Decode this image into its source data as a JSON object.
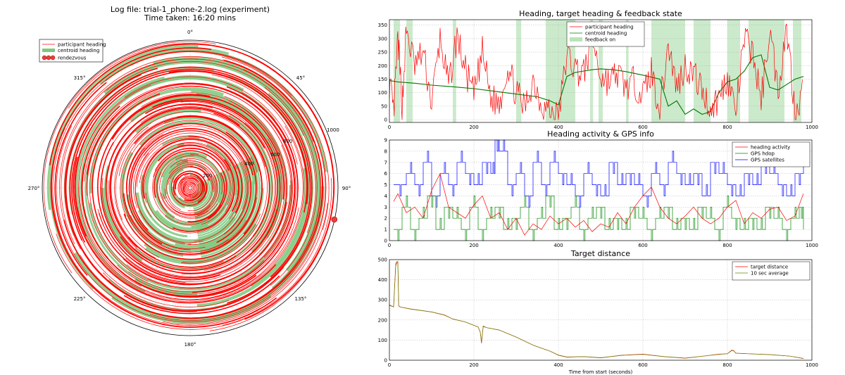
{
  "header": {
    "title_line1": "Log file: trial-1_phone-2.log (experiment)",
    "title_line2": "Time taken: 16:20 mins"
  },
  "polar": {
    "angle_labels": [
      "0°",
      "45°",
      "90°",
      "135°",
      "180°",
      "225°",
      "270°",
      "315°"
    ],
    "radial_labels": [
      "200",
      "400",
      "600",
      "800",
      "1000"
    ],
    "legend": [
      "participant heading",
      "centroid heading",
      "rendezvous"
    ],
    "colors": {
      "participant": "#ff0000",
      "centroid": "#7fc97f",
      "rendezvous": "#e8403a"
    }
  },
  "chart_data": [
    {
      "type": "line",
      "panel": "heading",
      "title": "Heading, target heading & feedback state",
      "xlim": [
        0,
        1000
      ],
      "ylim": [
        -10,
        370
      ],
      "xticks": [
        0,
        200,
        400,
        600,
        800,
        1000
      ],
      "yticks": [
        0,
        50,
        100,
        150,
        200,
        250,
        300,
        350
      ],
      "legend": [
        "participant heading",
        "centroid heading",
        "feedback on"
      ],
      "legend_position": "top-center",
      "grid": true,
      "series": [
        {
          "name": "centroid heading",
          "color": "#007700",
          "x": [
            0,
            20,
            60,
            100,
            150,
            200,
            250,
            300,
            350,
            380,
            400,
            420,
            440,
            460,
            480,
            500,
            530,
            560,
            600,
            640,
            660,
            680,
            700,
            720,
            740,
            760,
            780,
            800,
            820,
            840,
            860,
            880,
            900,
            920,
            940,
            960,
            980
          ],
          "y": [
            145,
            140,
            135,
            128,
            122,
            115,
            105,
            95,
            85,
            70,
            55,
            160,
            175,
            180,
            185,
            188,
            185,
            178,
            165,
            150,
            50,
            70,
            20,
            40,
            20,
            30,
            100,
            140,
            150,
            180,
            230,
            240,
            120,
            110,
            130,
            150,
            160
          ]
        },
        {
          "name": "participant heading",
          "color": "#ff0000",
          "x": [
            0,
            10,
            20,
            30,
            40,
            60,
            80,
            100,
            120,
            140,
            160,
            180,
            200,
            220,
            240,
            260,
            280,
            300,
            320,
            340,
            360,
            380,
            400,
            420,
            440,
            460,
            480,
            500,
            520,
            540,
            560,
            580,
            600,
            620,
            640,
            660,
            680,
            700,
            720,
            740,
            760,
            780,
            800,
            820,
            840,
            860,
            880,
            900,
            920,
            940,
            960,
            980
          ],
          "y": [
            140,
            20,
            300,
            50,
            330,
            200,
            250,
            60,
            300,
            120,
            310,
            180,
            90,
            250,
            80,
            60,
            200,
            100,
            40,
            150,
            60,
            30,
            10,
            240,
            190,
            170,
            300,
            160,
            140,
            170,
            120,
            140,
            90,
            180,
            40,
            280,
            120,
            200,
            170,
            110,
            40,
            80,
            160,
            30,
            300,
            250,
            70,
            340,
            110,
            350,
            30,
            120
          ]
        }
      ],
      "feedback_on": [
        [
          10,
          25
        ],
        [
          40,
          55
        ],
        [
          150,
          158
        ],
        [
          300,
          312
        ],
        [
          370,
          440
        ],
        [
          475,
          482
        ],
        [
          495,
          505
        ],
        [
          560,
          566
        ],
        [
          620,
          640
        ],
        [
          640,
          700
        ],
        [
          720,
          760
        ],
        [
          800,
          830
        ],
        [
          850,
          935
        ],
        [
          955,
          975
        ]
      ]
    },
    {
      "type": "line",
      "panel": "activity",
      "title": "Heading activity & GPS info",
      "xlim": [
        0,
        1000
      ],
      "ylim": [
        0,
        9
      ],
      "xticks": [
        0,
        200,
        400,
        600,
        800,
        1000
      ],
      "yticks": [
        0,
        1,
        2,
        3,
        4,
        5,
        6,
        7,
        8,
        9
      ],
      "legend": [
        "heading activity",
        "GPS hdop",
        "GPS satellites"
      ],
      "legend_position": "top-right",
      "grid": true,
      "series": [
        {
          "name": "GPS satellites",
          "color": "#0000ff",
          "x": [
            10,
            40,
            60,
            80,
            100,
            120,
            140,
            160,
            180,
            200,
            220,
            240,
            250,
            260,
            280,
            300,
            320,
            340,
            360,
            380,
            400,
            420,
            440,
            460,
            480,
            500,
            520,
            540,
            560,
            580,
            600,
            620,
            640,
            660,
            680,
            700,
            720,
            740,
            760,
            780,
            800,
            820,
            840,
            860,
            880,
            900,
            920,
            940,
            960,
            980
          ],
          "y": [
            5,
            6,
            5,
            7,
            4,
            6,
            5,
            7,
            6,
            5,
            7,
            6,
            9,
            8,
            5,
            6,
            4,
            7,
            5,
            7,
            6,
            5,
            4,
            6,
            5,
            4,
            7,
            5,
            6,
            5,
            4,
            6,
            5,
            7,
            6,
            5,
            6,
            4,
            7,
            6,
            5,
            4,
            6,
            5,
            7,
            6,
            5,
            4,
            6,
            7
          ]
        },
        {
          "name": "GPS hdop",
          "color": "#008800",
          "x": [
            10,
            30,
            50,
            70,
            90,
            110,
            130,
            150,
            170,
            190,
            210,
            230,
            250,
            270,
            290,
            310,
            330,
            350,
            370,
            390,
            410,
            430,
            450,
            470,
            490,
            510,
            530,
            550,
            570,
            590,
            610,
            630,
            650,
            670,
            690,
            710,
            730,
            750,
            770,
            790,
            810,
            830,
            850,
            870,
            890,
            910,
            930,
            950,
            970,
            980
          ],
          "y": [
            1,
            3,
            1,
            2,
            4,
            1,
            3,
            2,
            1,
            3,
            1,
            2,
            3,
            1,
            2,
            3,
            1,
            2,
            4,
            1,
            2,
            3,
            1,
            2,
            3,
            1,
            2,
            1,
            3,
            2,
            1,
            2,
            3,
            1,
            2,
            1,
            3,
            2,
            1,
            3,
            2,
            1,
            2,
            1,
            3,
            2,
            1,
            2,
            3,
            1
          ]
        },
        {
          "name": "heading activity",
          "color": "#ff0000",
          "x": [
            10,
            20,
            40,
            60,
            80,
            100,
            120,
            140,
            160,
            180,
            200,
            220,
            240,
            260,
            280,
            300,
            320,
            340,
            360,
            380,
            400,
            420,
            440,
            460,
            480,
            500,
            520,
            540,
            560,
            580,
            600,
            620,
            640,
            660,
            680,
            700,
            720,
            740,
            760,
            780,
            800,
            820,
            840,
            860,
            880,
            900,
            920,
            940,
            960,
            980
          ],
          "y": [
            3.5,
            4.2,
            2.5,
            3,
            2,
            4.5,
            6,
            3,
            2.5,
            2,
            3.2,
            4,
            2,
            2.5,
            1,
            2,
            0.5,
            1.5,
            1,
            2.2,
            1.5,
            2,
            1.2,
            1.8,
            0.8,
            1.5,
            1.2,
            2.5,
            1.5,
            3,
            4,
            4.8,
            3,
            2,
            1.5,
            2.2,
            3,
            2,
            1.5,
            2,
            3,
            3.6,
            1.5,
            2.5,
            2,
            2.8,
            3,
            1.8,
            2.2,
            4.2
          ]
        }
      ]
    },
    {
      "type": "line",
      "panel": "distance",
      "title": "Target distance",
      "xlabel": "Time from start (seconds)",
      "xlim": [
        0,
        1000
      ],
      "ylim": [
        0,
        500
      ],
      "xticks": [
        0,
        200,
        400,
        600,
        800,
        1000
      ],
      "yticks": [
        0,
        100,
        200,
        300,
        400,
        500
      ],
      "legend": [
        "target distance",
        "10 sec average"
      ],
      "legend_position": "top-right",
      "grid": true,
      "series": [
        {
          "name": "target distance",
          "color": "#ff0000",
          "x": [
            0,
            10,
            15,
            18,
            20,
            22,
            25,
            50,
            100,
            130,
            150,
            180,
            210,
            215,
            218,
            222,
            230,
            260,
            300,
            340,
            380,
            400,
            420,
            460,
            500,
            550,
            600,
            650,
            700,
            750,
            780,
            800,
            810,
            815,
            820,
            850,
            900,
            950,
            980
          ],
          "y": [
            275,
            265,
            480,
            490,
            490,
            270,
            265,
            255,
            240,
            225,
            205,
            190,
            165,
            140,
            85,
            170,
            162,
            150,
            115,
            75,
            45,
            25,
            15,
            18,
            12,
            25,
            30,
            18,
            10,
            22,
            30,
            32,
            50,
            48,
            35,
            32,
            28,
            20,
            8
          ]
        },
        {
          "name": "10 sec average",
          "color": "#668800",
          "x": [
            0,
            10,
            15,
            18,
            20,
            22,
            25,
            50,
            100,
            130,
            150,
            180,
            210,
            215,
            218,
            222,
            230,
            260,
            300,
            340,
            380,
            400,
            420,
            460,
            500,
            550,
            600,
            650,
            700,
            750,
            780,
            800,
            810,
            815,
            820,
            850,
            900,
            950,
            980
          ],
          "y": [
            272,
            265,
            470,
            485,
            485,
            272,
            265,
            254,
            240,
            224,
            205,
            190,
            165,
            140,
            90,
            168,
            162,
            150,
            115,
            75,
            45,
            26,
            16,
            18,
            13,
            24,
            29,
            18,
            11,
            22,
            29,
            32,
            48,
            46,
            35,
            32,
            28,
            20,
            9
          ]
        }
      ]
    }
  ]
}
